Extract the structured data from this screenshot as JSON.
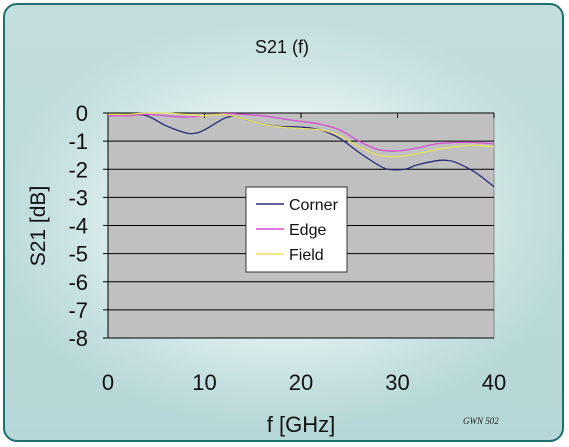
{
  "chart_data": {
    "type": "line",
    "title": "S21 (f)",
    "xlabel": "f [GHz]",
    "ylabel": "S21 [dB]",
    "xlim": [
      0,
      40
    ],
    "ylim": [
      -8,
      0
    ],
    "xticks": [
      0,
      10,
      20,
      30,
      40
    ],
    "yticks": [
      0,
      -1,
      -2,
      -3,
      -4,
      -5,
      -6,
      -7,
      -8
    ],
    "grid": true,
    "legend_position": "center",
    "plot_background": "#c0c0c0",
    "series": [
      {
        "name": "Corner",
        "color": "#2b2b7a",
        "x": [
          0,
          2,
          4,
          6,
          8,
          9,
          10,
          12,
          13,
          14,
          16,
          18,
          20,
          22,
          24,
          26,
          28,
          29,
          30,
          31,
          32,
          34,
          35,
          36,
          38,
          40
        ],
        "y": [
          -0.08,
          -0.05,
          -0.1,
          -0.45,
          -0.7,
          -0.72,
          -0.6,
          -0.2,
          -0.12,
          -0.2,
          -0.4,
          -0.48,
          -0.5,
          -0.6,
          -0.9,
          -1.4,
          -1.85,
          -2.0,
          -2.02,
          -1.98,
          -1.85,
          -1.7,
          -1.68,
          -1.75,
          -2.1,
          -2.62
        ]
      },
      {
        "name": "Edge",
        "color": "#d64fd6",
        "x": [
          0,
          2,
          4,
          6,
          8,
          10,
          12,
          14,
          16,
          18,
          20,
          22,
          24,
          26,
          28,
          30,
          32,
          34,
          36,
          38,
          40
        ],
        "y": [
          -0.1,
          -0.1,
          -0.05,
          -0.1,
          -0.15,
          -0.1,
          -0.02,
          -0.05,
          -0.1,
          -0.2,
          -0.3,
          -0.4,
          -0.6,
          -1.0,
          -1.3,
          -1.35,
          -1.25,
          -1.1,
          -1.05,
          -1.05,
          -1.1
        ]
      },
      {
        "name": "Field",
        "color": "#e8e060",
        "x": [
          0,
          2,
          4,
          6,
          8,
          10,
          12,
          14,
          16,
          18,
          20,
          22,
          24,
          26,
          28,
          30,
          32,
          34,
          36,
          38,
          40
        ],
        "y": [
          -0.05,
          -0.05,
          0.0,
          0.0,
          -0.05,
          -0.1,
          -0.05,
          -0.2,
          -0.4,
          -0.5,
          -0.55,
          -0.6,
          -0.8,
          -1.2,
          -1.5,
          -1.55,
          -1.45,
          -1.3,
          -1.2,
          -1.15,
          -1.2
        ]
      }
    ],
    "annotation": "GWN 502"
  }
}
